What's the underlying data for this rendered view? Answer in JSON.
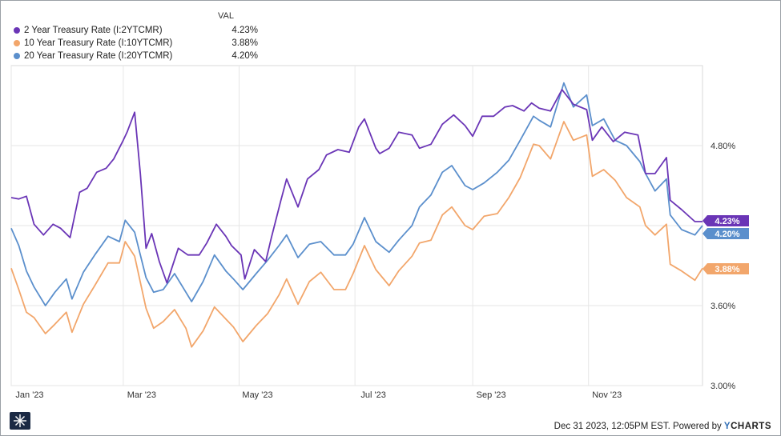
{
  "legend": {
    "header": "VAL",
    "items": [
      {
        "name": "2 Year Treasury Rate (I:2YTCMR)",
        "value": "4.23%",
        "color": "#6a35b6"
      },
      {
        "name": "10 Year Treasury Rate (I:10YTCMR)",
        "value": "3.88%",
        "color": "#f2a66b"
      },
      {
        "name": "20 Year Treasury Rate (I:20YTCMR)",
        "value": "4.20%",
        "color": "#5b8fcc"
      }
    ]
  },
  "footer": {
    "timestamp": "Dec 31 2023, 12:05PM EST. Powered by ",
    "brand_y": "Y",
    "brand_rest": "CHARTS"
  },
  "chart_data": {
    "type": "line",
    "x_tick_labels": [
      "Jan '23",
      "Mar '23",
      "May '23",
      "Jul '23",
      "Sep '23",
      "Nov '23"
    ],
    "y_tick_labels": [
      "4.80%",
      "3.60%",
      "3.00%"
    ],
    "series": [
      {
        "name": "2 Year Treasury Rate (I:2YTCMR)",
        "color": "#6a35b6",
        "end_label": "4.23%",
        "points": [
          [
            "2023-01-01",
            4.41
          ],
          [
            "2023-01-05",
            4.4
          ],
          [
            "2023-01-09",
            4.42
          ],
          [
            "2023-01-13",
            4.21
          ],
          [
            "2023-01-18",
            4.13
          ],
          [
            "2023-01-23",
            4.21
          ],
          [
            "2023-01-27",
            4.18
          ],
          [
            "2023-02-01",
            4.11
          ],
          [
            "2023-02-06",
            4.45
          ],
          [
            "2023-02-10",
            4.48
          ],
          [
            "2023-02-15",
            4.6
          ],
          [
            "2023-02-20",
            4.63
          ],
          [
            "2023-02-24",
            4.7
          ],
          [
            "2023-03-01",
            4.84
          ],
          [
            "2023-03-03",
            4.9
          ],
          [
            "2023-03-07",
            5.05
          ],
          [
            "2023-03-10",
            4.59
          ],
          [
            "2023-03-13",
            4.03
          ],
          [
            "2023-03-16",
            4.14
          ],
          [
            "2023-03-20",
            3.93
          ],
          [
            "2023-03-24",
            3.77
          ],
          [
            "2023-03-30",
            4.03
          ],
          [
            "2023-04-04",
            3.98
          ],
          [
            "2023-04-10",
            3.98
          ],
          [
            "2023-04-14",
            4.07
          ],
          [
            "2023-04-19",
            4.21
          ],
          [
            "2023-04-24",
            4.12
          ],
          [
            "2023-04-27",
            4.05
          ],
          [
            "2023-05-02",
            3.98
          ],
          [
            "2023-05-04",
            3.8
          ],
          [
            "2023-05-09",
            4.02
          ],
          [
            "2023-05-15",
            3.93
          ],
          [
            "2023-05-18",
            4.11
          ],
          [
            "2023-05-23",
            4.39
          ],
          [
            "2023-05-26",
            4.55
          ],
          [
            "2023-06-01",
            4.34
          ],
          [
            "2023-06-06",
            4.55
          ],
          [
            "2023-06-12",
            4.62
          ],
          [
            "2023-06-16",
            4.73
          ],
          [
            "2023-06-22",
            4.77
          ],
          [
            "2023-06-28",
            4.75
          ],
          [
            "2023-07-03",
            4.94
          ],
          [
            "2023-07-06",
            5.0
          ],
          [
            "2023-07-12",
            4.78
          ],
          [
            "2023-07-14",
            4.74
          ],
          [
            "2023-07-19",
            4.78
          ],
          [
            "2023-07-24",
            4.9
          ],
          [
            "2023-07-31",
            4.88
          ],
          [
            "2023-08-04",
            4.78
          ],
          [
            "2023-08-10",
            4.81
          ],
          [
            "2023-08-16",
            4.96
          ],
          [
            "2023-08-22",
            5.03
          ],
          [
            "2023-08-28",
            4.95
          ],
          [
            "2023-09-01",
            4.87
          ],
          [
            "2023-09-06",
            5.02
          ],
          [
            "2023-09-12",
            5.02
          ],
          [
            "2023-09-18",
            5.09
          ],
          [
            "2023-09-22",
            5.1
          ],
          [
            "2023-09-28",
            5.06
          ],
          [
            "2023-10-02",
            5.12
          ],
          [
            "2023-10-06",
            5.08
          ],
          [
            "2023-10-12",
            5.06
          ],
          [
            "2023-10-18",
            5.22
          ],
          [
            "2023-10-24",
            5.11
          ],
          [
            "2023-10-31",
            5.07
          ],
          [
            "2023-11-03",
            4.84
          ],
          [
            "2023-11-08",
            4.94
          ],
          [
            "2023-11-14",
            4.83
          ],
          [
            "2023-11-20",
            4.9
          ],
          [
            "2023-11-27",
            4.88
          ],
          [
            "2023-12-01",
            4.59
          ],
          [
            "2023-12-06",
            4.59
          ],
          [
            "2023-12-12",
            4.71
          ],
          [
            "2023-12-14",
            4.39
          ],
          [
            "2023-12-20",
            4.32
          ],
          [
            "2023-12-27",
            4.23
          ],
          [
            "2023-12-31",
            4.23
          ]
        ]
      },
      {
        "name": "10 Year Treasury Rate (I:10YTCMR)",
        "color": "#f2a66b",
        "end_label": "3.88%",
        "points": [
          [
            "2023-01-01",
            3.88
          ],
          [
            "2023-01-05",
            3.72
          ],
          [
            "2023-01-09",
            3.55
          ],
          [
            "2023-01-13",
            3.51
          ],
          [
            "2023-01-19",
            3.39
          ],
          [
            "2023-01-24",
            3.46
          ],
          [
            "2023-01-30",
            3.55
          ],
          [
            "2023-02-02",
            3.4
          ],
          [
            "2023-02-08",
            3.61
          ],
          [
            "2023-02-14",
            3.75
          ],
          [
            "2023-02-21",
            3.92
          ],
          [
            "2023-02-27",
            3.92
          ],
          [
            "2023-03-02",
            4.08
          ],
          [
            "2023-03-07",
            3.97
          ],
          [
            "2023-03-13",
            3.58
          ],
          [
            "2023-03-17",
            3.43
          ],
          [
            "2023-03-22",
            3.48
          ],
          [
            "2023-03-28",
            3.57
          ],
          [
            "2023-04-03",
            3.43
          ],
          [
            "2023-04-06",
            3.29
          ],
          [
            "2023-04-12",
            3.41
          ],
          [
            "2023-04-18",
            3.59
          ],
          [
            "2023-04-24",
            3.5
          ],
          [
            "2023-04-28",
            3.44
          ],
          [
            "2023-05-03",
            3.33
          ],
          [
            "2023-05-10",
            3.45
          ],
          [
            "2023-05-16",
            3.54
          ],
          [
            "2023-05-22",
            3.68
          ],
          [
            "2023-05-26",
            3.8
          ],
          [
            "2023-06-01",
            3.61
          ],
          [
            "2023-06-07",
            3.78
          ],
          [
            "2023-06-13",
            3.85
          ],
          [
            "2023-06-20",
            3.72
          ],
          [
            "2023-06-26",
            3.72
          ],
          [
            "2023-06-30",
            3.84
          ],
          [
            "2023-07-06",
            4.05
          ],
          [
            "2023-07-12",
            3.87
          ],
          [
            "2023-07-19",
            3.75
          ],
          [
            "2023-07-24",
            3.86
          ],
          [
            "2023-07-31",
            3.97
          ],
          [
            "2023-08-04",
            4.07
          ],
          [
            "2023-08-10",
            4.09
          ],
          [
            "2023-08-16",
            4.28
          ],
          [
            "2023-08-21",
            4.34
          ],
          [
            "2023-08-28",
            4.2
          ],
          [
            "2023-09-01",
            4.17
          ],
          [
            "2023-09-07",
            4.27
          ],
          [
            "2023-09-14",
            4.29
          ],
          [
            "2023-09-20",
            4.41
          ],
          [
            "2023-09-26",
            4.56
          ],
          [
            "2023-10-03",
            4.81
          ],
          [
            "2023-10-06",
            4.8
          ],
          [
            "2023-10-12",
            4.7
          ],
          [
            "2023-10-19",
            4.98
          ],
          [
            "2023-10-24",
            4.84
          ],
          [
            "2023-10-31",
            4.88
          ],
          [
            "2023-11-03",
            4.57
          ],
          [
            "2023-11-09",
            4.62
          ],
          [
            "2023-11-15",
            4.54
          ],
          [
            "2023-11-21",
            4.41
          ],
          [
            "2023-11-28",
            4.34
          ],
          [
            "2023-12-01",
            4.2
          ],
          [
            "2023-12-06",
            4.13
          ],
          [
            "2023-12-12",
            4.21
          ],
          [
            "2023-12-14",
            3.91
          ],
          [
            "2023-12-20",
            3.86
          ],
          [
            "2023-12-27",
            3.79
          ],
          [
            "2023-12-31",
            3.88
          ]
        ]
      },
      {
        "name": "20 Year Treasury Rate (I:20YTCMR)",
        "color": "#5b8fcc",
        "end_label": "4.20%",
        "points": [
          [
            "2023-01-01",
            4.18
          ],
          [
            "2023-01-05",
            4.05
          ],
          [
            "2023-01-09",
            3.86
          ],
          [
            "2023-01-13",
            3.74
          ],
          [
            "2023-01-19",
            3.6
          ],
          [
            "2023-01-24",
            3.7
          ],
          [
            "2023-01-30",
            3.8
          ],
          [
            "2023-02-02",
            3.65
          ],
          [
            "2023-02-08",
            3.85
          ],
          [
            "2023-02-14",
            3.98
          ],
          [
            "2023-02-21",
            4.12
          ],
          [
            "2023-02-27",
            4.08
          ],
          [
            "2023-03-02",
            4.24
          ],
          [
            "2023-03-07",
            4.15
          ],
          [
            "2023-03-13",
            3.81
          ],
          [
            "2023-03-17",
            3.7
          ],
          [
            "2023-03-22",
            3.72
          ],
          [
            "2023-03-28",
            3.84
          ],
          [
            "2023-04-03",
            3.7
          ],
          [
            "2023-04-06",
            3.63
          ],
          [
            "2023-04-12",
            3.78
          ],
          [
            "2023-04-18",
            3.98
          ],
          [
            "2023-04-24",
            3.86
          ],
          [
            "2023-04-28",
            3.8
          ],
          [
            "2023-05-03",
            3.72
          ],
          [
            "2023-05-10",
            3.84
          ],
          [
            "2023-05-16",
            3.94
          ],
          [
            "2023-05-22",
            4.05
          ],
          [
            "2023-05-26",
            4.13
          ],
          [
            "2023-06-01",
            3.96
          ],
          [
            "2023-06-07",
            4.06
          ],
          [
            "2023-06-13",
            4.08
          ],
          [
            "2023-06-20",
            3.98
          ],
          [
            "2023-06-26",
            3.98
          ],
          [
            "2023-06-30",
            4.06
          ],
          [
            "2023-07-06",
            4.26
          ],
          [
            "2023-07-12",
            4.08
          ],
          [
            "2023-07-19",
            4.0
          ],
          [
            "2023-07-24",
            4.09
          ],
          [
            "2023-07-31",
            4.2
          ],
          [
            "2023-08-04",
            4.34
          ],
          [
            "2023-08-10",
            4.43
          ],
          [
            "2023-08-16",
            4.6
          ],
          [
            "2023-08-21",
            4.65
          ],
          [
            "2023-08-28",
            4.5
          ],
          [
            "2023-09-01",
            4.47
          ],
          [
            "2023-09-07",
            4.52
          ],
          [
            "2023-09-14",
            4.6
          ],
          [
            "2023-09-20",
            4.69
          ],
          [
            "2023-09-26",
            4.84
          ],
          [
            "2023-10-03",
            5.02
          ],
          [
            "2023-10-06",
            4.99
          ],
          [
            "2023-10-12",
            4.94
          ],
          [
            "2023-10-19",
            5.27
          ],
          [
            "2023-10-24",
            5.09
          ],
          [
            "2023-10-31",
            5.18
          ],
          [
            "2023-11-03",
            4.95
          ],
          [
            "2023-11-09",
            5.0
          ],
          [
            "2023-11-15",
            4.84
          ],
          [
            "2023-11-21",
            4.8
          ],
          [
            "2023-11-28",
            4.68
          ],
          [
            "2023-12-01",
            4.59
          ],
          [
            "2023-12-06",
            4.46
          ],
          [
            "2023-12-12",
            4.55
          ],
          [
            "2023-12-14",
            4.28
          ],
          [
            "2023-12-20",
            4.17
          ],
          [
            "2023-12-27",
            4.13
          ],
          [
            "2023-12-31",
            4.2
          ]
        ]
      }
    ]
  }
}
